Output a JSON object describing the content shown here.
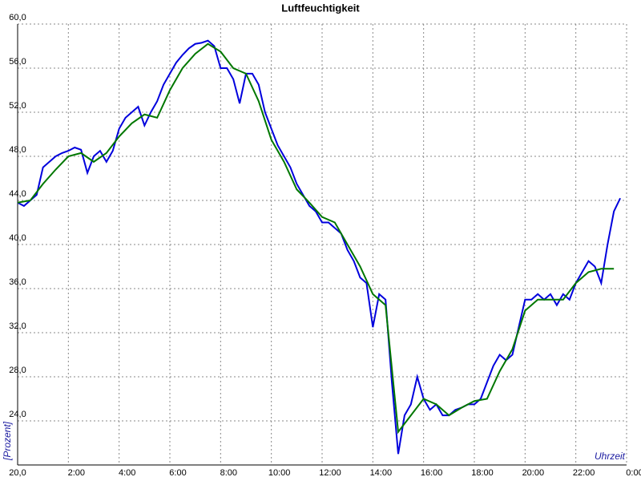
{
  "chart_data": {
    "type": "line",
    "title": "Luftfeuchtigkeit",
    "y_label": "[Prozent]",
    "x_label": "Uhrzeit",
    "xlim": [
      0,
      24
    ],
    "xticks": [
      {
        "value": 2,
        "label": "2:00"
      },
      {
        "value": 4,
        "label": "4:00"
      },
      {
        "value": 6,
        "label": "6:00"
      },
      {
        "value": 8,
        "label": "8:00"
      },
      {
        "value": 10,
        "label": "10:00"
      },
      {
        "value": 12,
        "label": "12:00"
      },
      {
        "value": 14,
        "label": "14:00"
      },
      {
        "value": 16,
        "label": "16:00"
      },
      {
        "value": 18,
        "label": "18:00"
      },
      {
        "value": 20,
        "label": "20:00"
      },
      {
        "value": 22,
        "label": "22:00"
      },
      {
        "value": 24,
        "label": "0:00"
      }
    ],
    "ylim": [
      20,
      60
    ],
    "yticks": [
      {
        "value": 20,
        "label": "20,0"
      },
      {
        "value": 24,
        "label": "24,0"
      },
      {
        "value": 28,
        "label": "28,0"
      },
      {
        "value": 32,
        "label": "32,0"
      },
      {
        "value": 36,
        "label": "36,0"
      },
      {
        "value": 40,
        "label": "40,0"
      },
      {
        "value": 44,
        "label": "44,0"
      },
      {
        "value": 48,
        "label": "48,0"
      },
      {
        "value": 52,
        "label": "52,0"
      },
      {
        "value": 56,
        "label": "56,0"
      },
      {
        "value": 60,
        "label": "60,0"
      }
    ],
    "grid": true,
    "series": [
      {
        "color": "#0000dd",
        "x": [
          0,
          0.25,
          0.5,
          0.75,
          1,
          1.25,
          1.5,
          1.75,
          2,
          2.25,
          2.5,
          2.75,
          3,
          3.25,
          3.5,
          3.75,
          4,
          4.25,
          4.5,
          4.75,
          5,
          5.25,
          5.5,
          5.75,
          6,
          6.25,
          6.5,
          6.75,
          7,
          7.25,
          7.5,
          7.75,
          8,
          8.25,
          8.5,
          8.75,
          9,
          9.25,
          9.5,
          9.75,
          10,
          10.25,
          10.5,
          10.75,
          11,
          11.25,
          11.5,
          11.75,
          12,
          12.25,
          12.5,
          12.75,
          13,
          13.25,
          13.5,
          13.75,
          14,
          14.25,
          14.5,
          14.75,
          15,
          15.25,
          15.5,
          15.75,
          16,
          16.25,
          16.5,
          16.75,
          17,
          17.25,
          17.5,
          17.75,
          18,
          18.25,
          18.5,
          18.75,
          19,
          19.25,
          19.5,
          19.75,
          20,
          20.25,
          20.5,
          20.75,
          21,
          21.25,
          21.5,
          21.75,
          22,
          22.25,
          22.5,
          22.75,
          23,
          23.25,
          23.5,
          23.75
        ],
        "values": [
          43.8,
          43.5,
          44,
          44.5,
          47,
          47.5,
          48,
          48.3,
          48.5,
          48.8,
          48.6,
          46.5,
          48,
          48.5,
          47.5,
          48.5,
          50.5,
          51.5,
          52,
          52.5,
          50.8,
          52,
          53,
          54.5,
          55.5,
          56.5,
          57.2,
          57.8,
          58.2,
          58.3,
          58.5,
          58,
          56,
          56,
          55,
          52.8,
          55.5,
          55.5,
          54.5,
          52,
          50.5,
          49,
          48,
          47,
          45.5,
          44.5,
          43.5,
          43,
          42,
          42,
          41.5,
          41,
          39.5,
          38.5,
          37,
          36.5,
          32.5,
          35.5,
          35,
          27.5,
          21,
          24.5,
          25.5,
          28,
          26,
          25,
          25.5,
          24.5,
          24.5,
          25,
          25.2,
          25.5,
          25.5,
          26,
          27.5,
          29,
          30,
          29.5,
          30,
          32.5,
          35,
          35,
          35.5,
          35,
          35.5,
          34.5,
          35.5,
          35,
          36.5,
          37.5,
          38.5,
          38,
          36.5,
          40,
          43,
          44.2
        ]
      },
      {
        "color": "#007700",
        "x": [
          0,
          0.5,
          1,
          1.5,
          2,
          2.5,
          3,
          3.5,
          4,
          4.5,
          5,
          5.5,
          6,
          6.5,
          7,
          7.5,
          8,
          8.5,
          9,
          9.5,
          10,
          10.5,
          11,
          11.5,
          12,
          12.5,
          13,
          13.5,
          14,
          14.5,
          15,
          15.5,
          16,
          16.5,
          17,
          17.5,
          18,
          18.5,
          19,
          19.5,
          20,
          20.5,
          21,
          21.5,
          22,
          22.5,
          23,
          23.5
        ],
        "values": [
          43.8,
          44,
          45.5,
          46.8,
          48,
          48.3,
          47.5,
          48.3,
          49.8,
          51,
          51.8,
          51.5,
          54,
          56,
          57.3,
          58.2,
          57.5,
          56,
          55.5,
          53,
          49.5,
          47.5,
          45,
          43.8,
          42.5,
          42,
          40,
          38,
          35.5,
          34.5,
          23,
          24.5,
          26,
          25.5,
          24.5,
          25.2,
          25.8,
          26,
          28.5,
          30.5,
          34,
          35,
          35,
          35,
          36.5,
          37.5,
          37.8,
          37.8
        ]
      }
    ]
  }
}
